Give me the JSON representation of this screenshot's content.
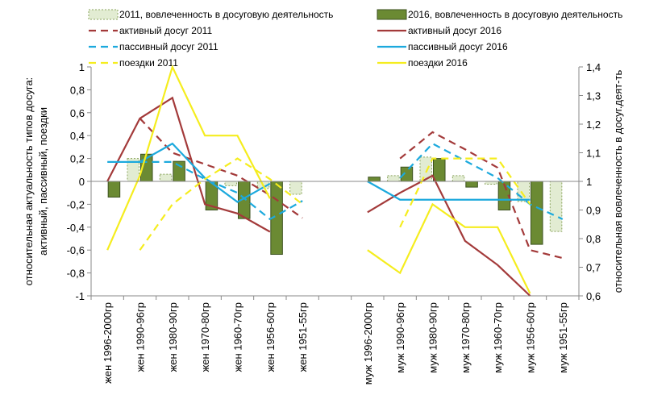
{
  "chart_data": {
    "type": "bar",
    "categories": [
      "жен 1996-2000гр",
      "жен 1990-96гр",
      "жен 1980-90гр",
      "жен 1970-80гр",
      "жен 1960-70гр",
      "жен 1956-60гр",
      "жен 1951-55гр",
      "",
      "муж 1996-2000гр",
      "муж 1990-96гр",
      "муж 1980-90гр",
      "муж 1970-80гр",
      "муж 1960-70гр",
      "муж 1956-60гр",
      "муж 1951-55гр"
    ],
    "y_left_label": "относительная актуальность типов досуга: активный, пассивный, поездки",
    "y_right_label": "относительная вовлеченность в досуг.деят-ть",
    "y_left_ticks": [
      "1",
      "0,8",
      "0,6",
      "0,4",
      "0,2",
      "0",
      "-0,2",
      "-0,4",
      "-0,6",
      "-0,8",
      "-1"
    ],
    "y_right_ticks": [
      "1,4",
      "1,3",
      "1,2",
      "1,1",
      "1",
      "0,9",
      "0,8",
      "0,7",
      "0,6"
    ],
    "ylim_left": [
      -1,
      1
    ],
    "ylim_right": [
      0.6,
      1.4
    ],
    "legend_position": "top",
    "colors": {
      "bar2011_fill": "#e2ecd2",
      "bar2011_stroke": "#8aa35c",
      "bar2016_fill": "#6b8a33",
      "bar2016_stroke": "#3d5220",
      "active": "#a33a3a",
      "passive": "#1ca9dd",
      "trips": "#f5ed1e"
    },
    "series": [
      {
        "name": "2011, вовлеченность в досуговую деятельность",
        "kind": "bar",
        "axis": "right",
        "style": "bar2011",
        "values": [
          null,
          1.08,
          1.025,
          null,
          0.985,
          0.975,
          0.955,
          null,
          null,
          1.02,
          1.085,
          1.02,
          0.99,
          0.93,
          0.825
        ]
      },
      {
        "name": "2016, вовлеченность в досуговую деятельность",
        "kind": "bar",
        "axis": "right",
        "style": "bar2016",
        "values": [
          0.945,
          1.095,
          1.07,
          0.9,
          0.87,
          0.745,
          null,
          null,
          1.015,
          1.05,
          1.08,
          0.98,
          0.9,
          0.78,
          null
        ]
      },
      {
        "name": "активный досуг 2011",
        "kind": "line",
        "axis": "left",
        "color": "active",
        "dash": true,
        "values": [
          null,
          0.55,
          0.25,
          0.15,
          0.05,
          -0.12,
          -0.32,
          null,
          null,
          0.2,
          0.43,
          0.28,
          0.12,
          -0.6,
          -0.67
        ]
      },
      {
        "name": "активный досуг 2016",
        "kind": "line",
        "axis": "left",
        "color": "active",
        "dash": false,
        "values": [
          0,
          0.55,
          0.73,
          -0.2,
          -0.28,
          -0.44,
          null,
          null,
          -0.27,
          -0.1,
          0.05,
          -0.52,
          -0.73,
          -1.0,
          null
        ]
      },
      {
        "name": "пассивный досуг 2011",
        "kind": "line",
        "axis": "left",
        "color": "passive",
        "dash": true,
        "values": [
          null,
          0.17,
          0.17,
          0.02,
          -0.1,
          -0.33,
          -0.17,
          null,
          null,
          0.03,
          0.33,
          0.18,
          0.03,
          -0.2,
          -0.33
        ]
      },
      {
        "name": "пассивный досуг 2016",
        "kind": "line",
        "axis": "left",
        "color": "passive",
        "dash": false,
        "values": [
          0.17,
          0.17,
          0.33,
          0.03,
          -0.18,
          -0.02,
          null,
          null,
          0,
          -0.16,
          -0.16,
          -0.16,
          -0.16,
          -0.16,
          null
        ]
      },
      {
        "name": "поездки 2011",
        "kind": "line",
        "axis": "left",
        "color": "trips",
        "dash": true,
        "values": [
          null,
          -0.6,
          -0.2,
          0.02,
          0.2,
          0.02,
          -0.2,
          null,
          null,
          -0.4,
          0.2,
          0.2,
          0.2,
          -0.2,
          null
        ]
      },
      {
        "name": "поездки 2016",
        "kind": "line",
        "axis": "left",
        "color": "trips",
        "dash": false,
        "values": [
          -0.6,
          0.05,
          1.0,
          0.4,
          0.4,
          -0.15,
          null,
          null,
          -0.6,
          -0.8,
          -0.2,
          -0.4,
          -0.4,
          -0.98,
          null
        ]
      }
    ]
  }
}
